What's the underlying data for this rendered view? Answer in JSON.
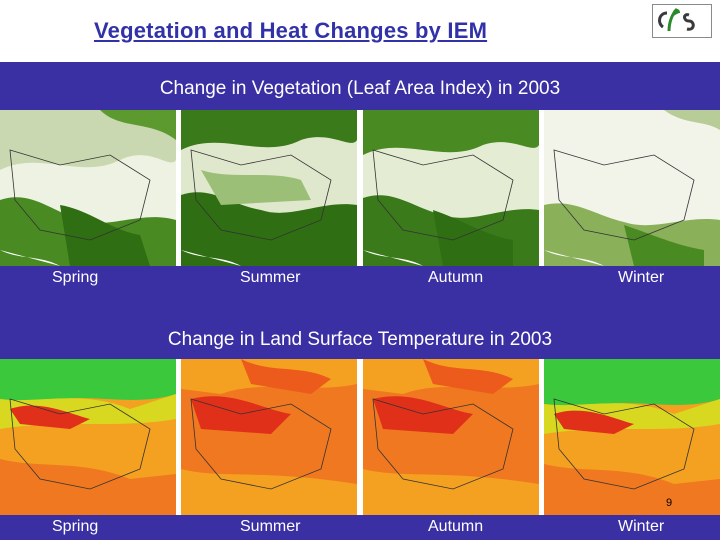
{
  "slide": {
    "title": "Vegetation and Heat Changes by IEM",
    "page_number": "9"
  },
  "logo": {
    "description_icon": "ces-logo"
  },
  "vegetation": {
    "heading": "Change in Vegetation (Leaf Area Index) in 2003",
    "seasons": [
      "Spring",
      "Summer",
      "Autumn",
      "Winter"
    ]
  },
  "temperature": {
    "heading": "Change in Land Surface Temperature in 2003",
    "seasons": [
      "Spring",
      "Summer",
      "Autumn",
      "Winter"
    ]
  },
  "colors": {
    "background": "#3a2fa3",
    "title": "#3232a8",
    "veg_dark": "#2f6e12",
    "veg_light": "#eef2e2",
    "temp_hot": "#e0301a",
    "temp_warm": "#f4a020",
    "temp_cool": "#3cc83c"
  }
}
